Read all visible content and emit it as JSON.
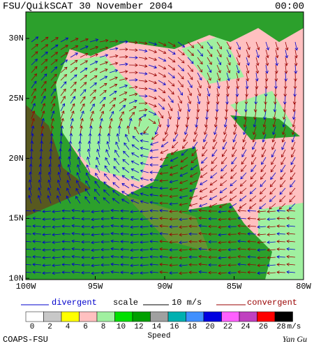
{
  "header": {
    "title": "FSU/QuikSCAT 30 November 2004",
    "time": "00:00"
  },
  "map": {
    "lat_labels": [
      "30N",
      "25N",
      "20N",
      "15N",
      "10N"
    ],
    "lon_labels": [
      "100W",
      "95W",
      "90W",
      "85W",
      "80W"
    ]
  },
  "legend": {
    "divergent": "divergent",
    "scale": "scale",
    "scale_value": "10 m/s",
    "convergent": "convergent",
    "divergent_color": "#0000cc",
    "convergent_color": "#990000"
  },
  "colorbar": {
    "labels": [
      "0",
      "2",
      "4",
      "6",
      "8",
      "10",
      "12",
      "14",
      "16",
      "18",
      "20",
      "22",
      "24",
      "26",
      "28"
    ],
    "colors": [
      "#ffffff",
      "#c8c8c8",
      "#ffff00",
      "#ffc0c0",
      "#a0f0a0",
      "#00e000",
      "#00a000",
      "#a0a0a0",
      "#00b0b0",
      "#4090ff",
      "#0000e0",
      "#ff60ff",
      "#c040c0",
      "#ff0000",
      "#000000"
    ],
    "unit": "m/s",
    "label": "Speed"
  },
  "footer": {
    "left": "COAPS-FSU",
    "right": "Yan Gu"
  }
}
